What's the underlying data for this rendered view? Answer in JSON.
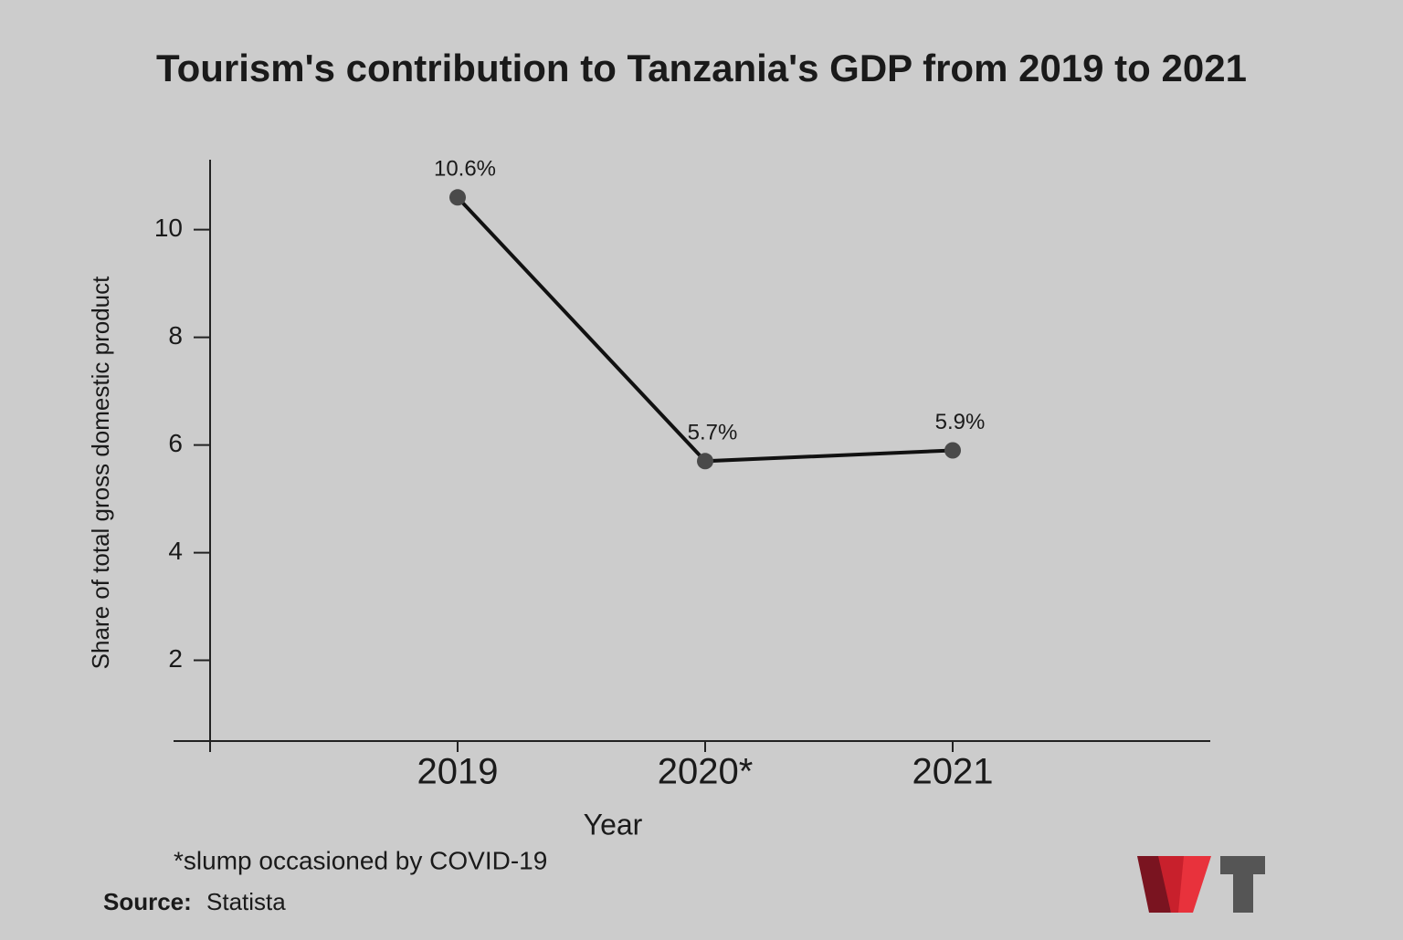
{
  "chart_data": {
    "type": "line",
    "title": "Tourism's contribution to Tanzania's GDP from 2019 to 2021",
    "y_label": "Share of total gross domestic product",
    "x_label": "Year",
    "categories": [
      "2019",
      "2020*",
      "2021"
    ],
    "values": [
      10.6,
      5.7,
      5.9
    ],
    "value_labels": [
      "10.6%",
      "5.7%",
      "5.9%"
    ],
    "color": "#111111",
    "marker_color": "#4a4a4a",
    "ylim": [
      0.5,
      11.3
    ],
    "yticks": [
      2,
      4,
      6,
      8,
      10
    ],
    "footnote": "*slump occasioned by COVID-19",
    "source_label": "Source:",
    "source": "Statista"
  }
}
